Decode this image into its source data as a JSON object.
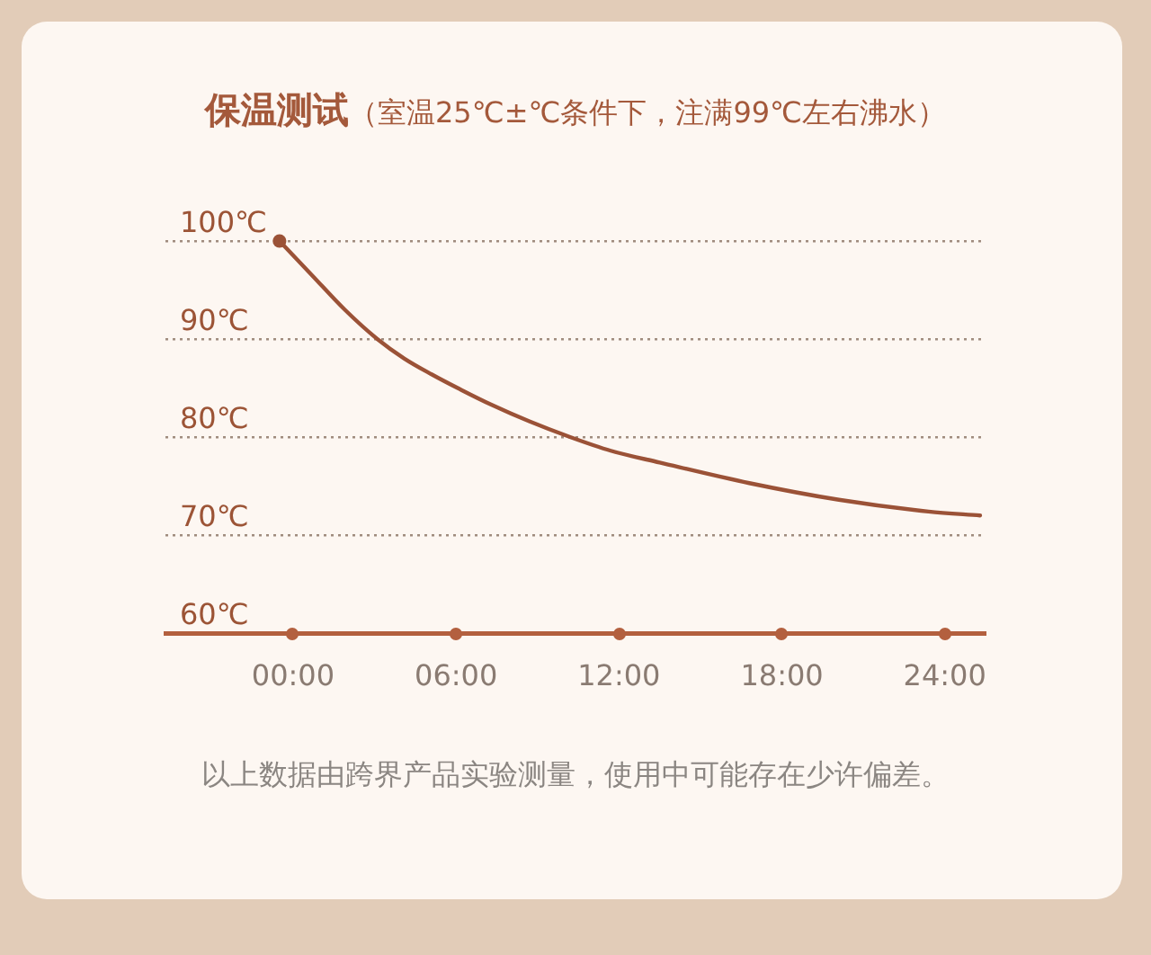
{
  "chart_data": {
    "type": "line",
    "title": "保温测试",
    "subtitle": "（室温25℃±℃条件下，注满99℃左右沸水）",
    "x": [
      -0.5,
      0.7,
      1.9,
      3.1,
      4.1,
      5.1,
      6.2,
      7.3,
      8.7,
      10.2,
      11.7,
      13.5,
      16.8,
      20.1,
      23.4,
      25.3
    ],
    "values": [
      100,
      96.5,
      93.0,
      90,
      88.0,
      86.4,
      84.8,
      83.3,
      81.6,
      80.0,
      78.6,
      77.4,
      75.3,
      73.6,
      72.4,
      72.0
    ],
    "color": "#9b5237",
    "xlim": [
      -4.7,
      25.5
    ],
    "xticks": [
      {
        "value": 0,
        "label": "00:00"
      },
      {
        "value": 6,
        "label": "06:00"
      },
      {
        "value": 12,
        "label": "12:00"
      },
      {
        "value": 18,
        "label": "18:00"
      },
      {
        "value": 24,
        "label": "24:00"
      }
    ],
    "ylim": [
      60,
      100
    ],
    "yticks": [
      {
        "value": 60,
        "label": "60℃"
      },
      {
        "value": 70,
        "label": "70℃"
      },
      {
        "value": 80,
        "label": "80℃"
      },
      {
        "value": 90,
        "label": "90℃"
      },
      {
        "value": 100,
        "label": "100℃"
      }
    ],
    "grid": "y",
    "line_style": "solid",
    "annotations": [
      "以上数据由跨界产品实验测量，使用中可能存在少许偏差。"
    ]
  }
}
